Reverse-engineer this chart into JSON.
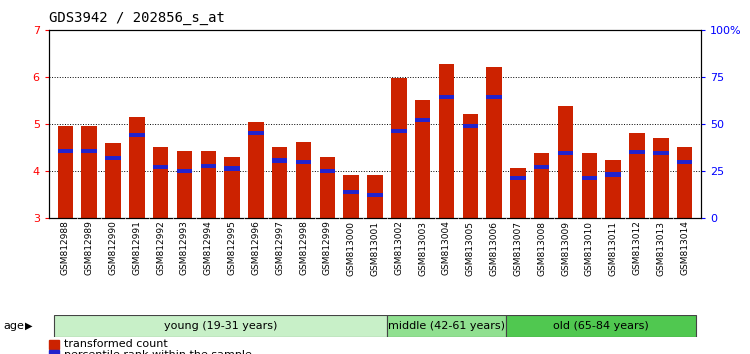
{
  "title": "GDS3942 / 202856_s_at",
  "samples": [
    "GSM812988",
    "GSM812989",
    "GSM812990",
    "GSM812991",
    "GSM812992",
    "GSM812993",
    "GSM812994",
    "GSM812995",
    "GSM812996",
    "GSM812997",
    "GSM812998",
    "GSM812999",
    "GSM813000",
    "GSM813001",
    "GSM813002",
    "GSM813003",
    "GSM813004",
    "GSM813005",
    "GSM813006",
    "GSM813007",
    "GSM813008",
    "GSM813009",
    "GSM813010",
    "GSM813011",
    "GSM813012",
    "GSM813013",
    "GSM813014"
  ],
  "red_values": [
    4.95,
    4.95,
    4.6,
    5.15,
    4.5,
    4.42,
    4.42,
    4.3,
    5.05,
    4.5,
    4.62,
    4.3,
    3.9,
    3.9,
    5.98,
    5.5,
    6.28,
    5.22,
    6.22,
    4.05,
    4.38,
    5.38,
    4.38,
    4.22,
    4.8,
    4.7,
    4.5
  ],
  "blue_values": [
    4.43,
    4.42,
    4.27,
    4.77,
    4.08,
    4.0,
    4.1,
    4.05,
    4.8,
    4.22,
    4.18,
    4.0,
    3.55,
    3.48,
    4.85,
    5.08,
    5.58,
    4.95,
    5.58,
    3.85,
    4.08,
    4.38,
    3.85,
    3.92,
    4.4,
    4.38,
    4.18
  ],
  "groups": [
    {
      "label": "young (19-31 years)",
      "start": 0,
      "end": 14,
      "color": "#c8f0c8"
    },
    {
      "label": "middle (42-61 years)",
      "start": 14,
      "end": 19,
      "color": "#90e090"
    },
    {
      "label": "old (65-84 years)",
      "start": 19,
      "end": 27,
      "color": "#50c850"
    }
  ],
  "ylim": [
    3.0,
    7.0
  ],
  "yticks_left": [
    3,
    4,
    5,
    6,
    7
  ],
  "yticks_right": [
    0,
    25,
    50,
    75,
    100
  ],
  "bar_color": "#cc2200",
  "blue_color": "#2222cc",
  "title_fontsize": 10,
  "tick_label_fontsize": 6.5,
  "group_label_fontsize": 8
}
